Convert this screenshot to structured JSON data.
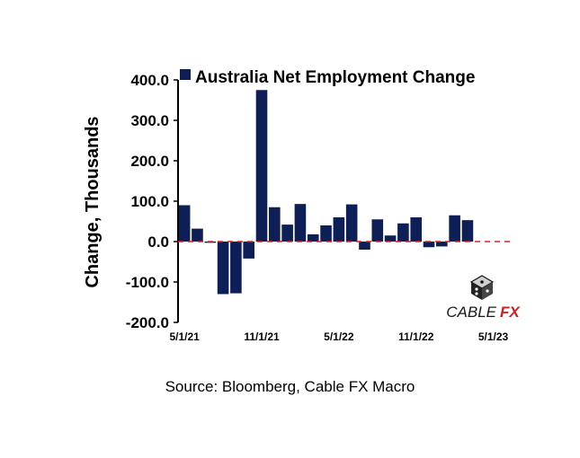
{
  "chart_data": {
    "type": "bar",
    "title": "Australia Net Employment Change",
    "ylabel": "Change, Thousands",
    "xlabel": "",
    "ylim": [
      -200,
      400
    ],
    "yticks": [
      "400.0",
      "300.0",
      "200.0",
      "100.0",
      "0.0",
      "-100.0",
      "-200.0"
    ],
    "ytick_values": [
      400,
      300,
      200,
      100,
      0,
      -100,
      -200
    ],
    "series": [
      {
        "name": "Australia Net Employment Change",
        "values": [
          90,
          32,
          -3,
          -130,
          -128,
          -42,
          375,
          85,
          42,
          93,
          18,
          40,
          60,
          92,
          -20,
          55,
          15,
          45,
          60,
          -14,
          -12,
          65,
          53,
          0,
          0,
          0
        ]
      }
    ],
    "xtick_labels": [
      {
        "label": "5/1/21",
        "index": 0
      },
      {
        "label": "11/1/21",
        "index": 6
      },
      {
        "label": "5/1/22",
        "index": 12
      },
      {
        "label": "11/1/22",
        "index": 18
      },
      {
        "label": "5/1/23",
        "index": 24
      }
    ],
    "colors": {
      "bar": "#0e1f57",
      "zero_line": "#e0201b"
    },
    "source": "Source: Bloomberg, Cable FX Macro",
    "logo": {
      "text_left": "CABLE",
      "text_right": "FX",
      "icon": "dice-icon"
    }
  }
}
